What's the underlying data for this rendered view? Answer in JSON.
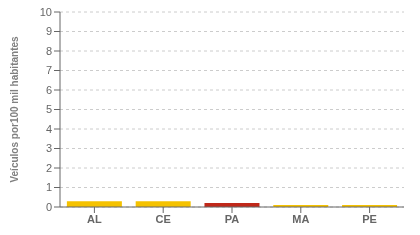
{
  "chart_data": {
    "type": "bar",
    "categories": [
      "AL",
      "CE",
      "PA",
      "MA",
      "PE"
    ],
    "values": [
      0.3,
      0.3,
      0.2,
      0.1,
      0.1
    ],
    "colors": [
      "#F5C200",
      "#F5C200",
      "#C0281A",
      "#F5C200",
      "#F5C200"
    ],
    "ylabel": "Veículos por100 mil habitantes",
    "ylim": [
      0,
      10
    ],
    "yticks": [
      0,
      1,
      2,
      3,
      4,
      5,
      6,
      7,
      8,
      9,
      10
    ],
    "grid": true
  }
}
